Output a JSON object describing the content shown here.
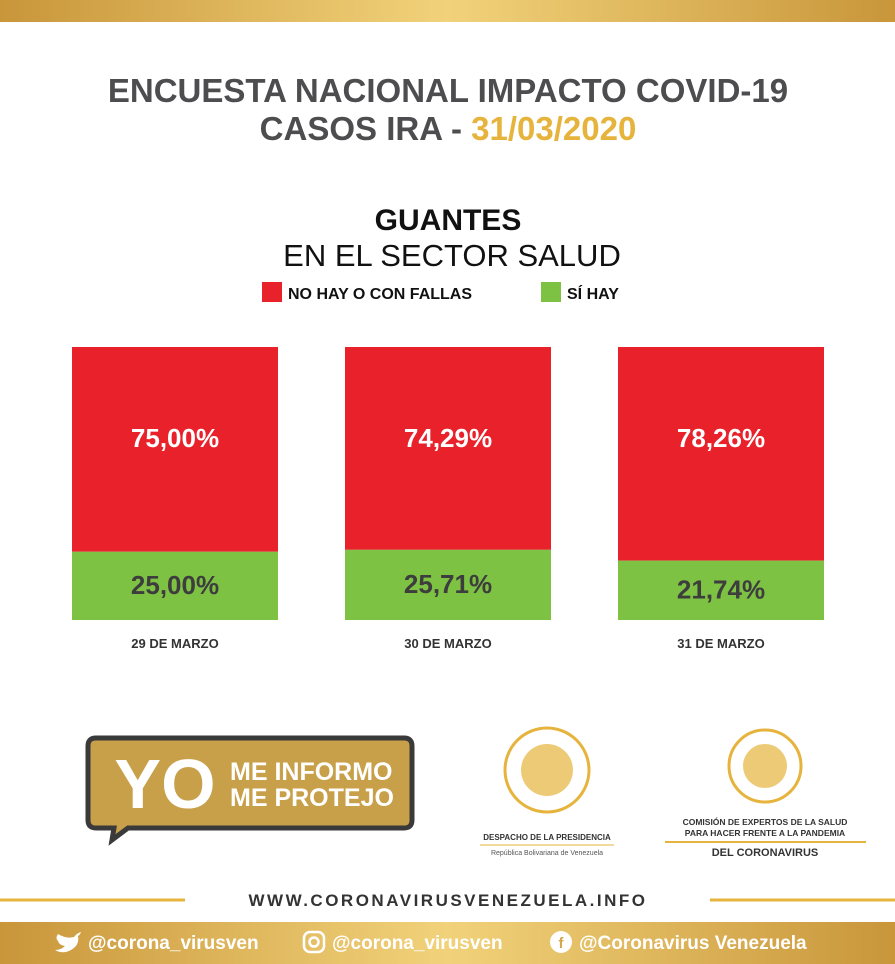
{
  "header": {
    "title_line1": "ENCUESTA NACIONAL IMPACTO COVID-19",
    "title_line2": "CASOS IRA - ",
    "date": "31/03/2020"
  },
  "chart_data": {
    "type": "stacked_bar",
    "title": "GUANTES",
    "subtitle": "EN EL SECTOR SALUD",
    "categories": [
      "29 DE MARZO",
      "30 DE MARZO",
      "31 DE MARZO"
    ],
    "series": [
      {
        "name": "NO HAY O CON FALLAS",
        "color": "#e8212a",
        "values": [
          75.0,
          74.29,
          78.26
        ],
        "value_labels": [
          "75,00%",
          "74,29%",
          "78,26%"
        ]
      },
      {
        "name": "SÍ HAY",
        "color": "#7dc243",
        "values": [
          25.0,
          25.71,
          21.74
        ],
        "value_labels": [
          "25,00%",
          "25,71%",
          "21,74%"
        ]
      }
    ]
  },
  "footer": {
    "yo": "YO",
    "informo": "ME INFORMO",
    "protejo": "ME PROTEJO",
    "despacho": "DESPACHO DE LA PRESIDENCIA",
    "republica": "República Bolivariana de Venezuela",
    "comision1": "COMISIÓN DE EXPERTOS DE LA SALUD",
    "comision2": "PARA HACER FRENTE A LA PANDEMIA",
    "comision3": "DEL CORONAVIRUS",
    "website": "WWW.CORONAVIRUSVENEZUELA.INFO",
    "twitter": "@corona_virusven",
    "instagram": "@corona_virusven",
    "facebook": "@Coronavirus Venezuela"
  }
}
